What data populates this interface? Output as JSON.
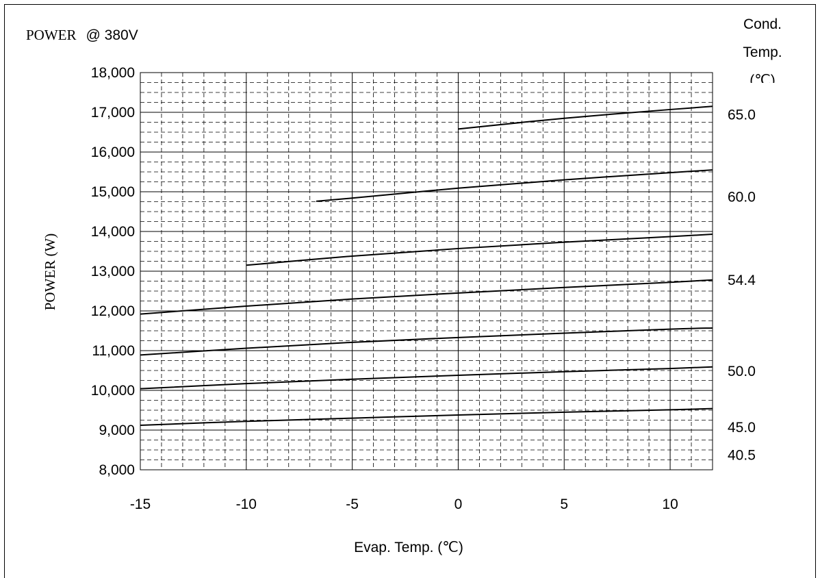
{
  "chart_data": {
    "type": "line",
    "title_prefix": "POWER",
    "title_suffix": "@ 380V",
    "xlabel": "Evap. Temp. (℃)",
    "ylabel": "POWER (W)",
    "right_axis_title": [
      "Cond.",
      "Temp.",
      "(℃)"
    ],
    "xlim": [
      -15,
      12
    ],
    "ylim": [
      8000,
      18000
    ],
    "x_ticks": [
      -15,
      -10,
      -5,
      0,
      5,
      10
    ],
    "x_tick_labels": [
      "-15",
      "-10",
      "-5",
      "0",
      "5",
      "10"
    ],
    "y_ticks": [
      8000,
      9000,
      10000,
      11000,
      12000,
      13000,
      14000,
      15000,
      16000,
      17000,
      18000
    ],
    "y_tick_labels": [
      "8,000",
      "9,000",
      "10,000",
      "11,000",
      "12,000",
      "13,000",
      "14,000",
      "15,000",
      "16,000",
      "17,000",
      "18,000"
    ],
    "grid": true,
    "series": [
      {
        "name": "40.5",
        "label_y": 8370,
        "points": [
          [
            -15,
            9120
          ],
          [
            -10,
            9220
          ],
          [
            -5,
            9300
          ],
          [
            0,
            9380
          ],
          [
            5,
            9450
          ],
          [
            10,
            9510
          ],
          [
            12,
            9540
          ]
        ]
      },
      {
        "name": "45.0",
        "label_y": 9070,
        "points": [
          [
            -15,
            10040
          ],
          [
            -10,
            10170
          ],
          [
            -5,
            10280
          ],
          [
            0,
            10380
          ],
          [
            5,
            10470
          ],
          [
            10,
            10550
          ],
          [
            12,
            10590
          ]
        ]
      },
      {
        "name": "50.0",
        "label_y": 10480,
        "points": [
          [
            -15,
            10890
          ],
          [
            -10,
            11060
          ],
          [
            -5,
            11210
          ],
          [
            0,
            11330
          ],
          [
            5,
            11440
          ],
          [
            10,
            11540
          ],
          [
            12,
            11570
          ]
        ]
      },
      {
        "name": "54.4",
        "label_y": 12780,
        "points": [
          [
            -15,
            11920
          ],
          [
            -10,
            12120
          ],
          [
            -5,
            12300
          ],
          [
            0,
            12450
          ],
          [
            5,
            12590
          ],
          [
            10,
            12720
          ],
          [
            12,
            12780
          ]
        ]
      },
      {
        "name": "",
        "points": [
          [
            -10,
            13150
          ],
          [
            -5,
            13380
          ],
          [
            0,
            13570
          ],
          [
            5,
            13730
          ],
          [
            10,
            13870
          ],
          [
            12,
            13930
          ]
        ]
      },
      {
        "name": "60.0",
        "label_y": 14870,
        "points": [
          [
            -6.7,
            14760
          ],
          [
            -5,
            14840
          ],
          [
            0,
            15090
          ],
          [
            5,
            15300
          ],
          [
            10,
            15480
          ],
          [
            12,
            15550
          ]
        ]
      },
      {
        "name": "65.0",
        "label_y": 16940,
        "points": [
          [
            0,
            16580
          ],
          [
            5,
            16850
          ],
          [
            10,
            17070
          ],
          [
            12,
            17150
          ]
        ]
      }
    ]
  }
}
